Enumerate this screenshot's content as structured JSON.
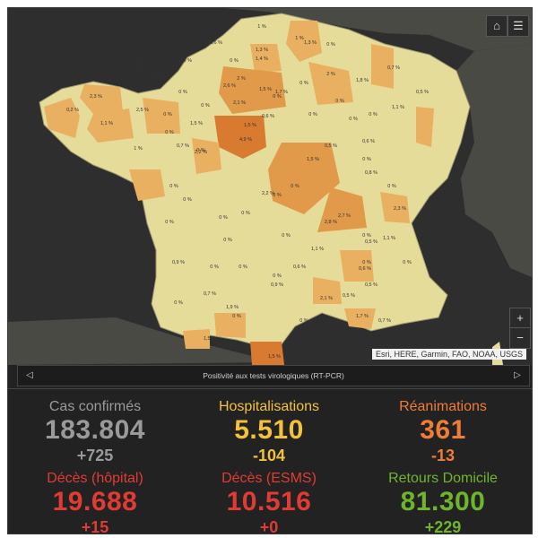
{
  "map": {
    "attribution": "Esri, HERE, Garmin, FAO, NOAA, USGS",
    "home_icon": "home-icon",
    "legend_icon": "legend-list-icon",
    "zoom_in": "+",
    "zoom_out": "−",
    "colors": {
      "ocean": "#2e2e2e",
      "land_base": "#e6dc9a",
      "neighbors": "#4a4a44",
      "orange_light": "#e8b060",
      "orange_mid": "#e09a4a",
      "orange_dark": "#d87a30",
      "dept_border": "#9a956e"
    },
    "department_labels": [
      "1 %",
      "1 %",
      "0,6 %",
      "1,3 %",
      "1,3 %",
      "0 %",
      "0,8 %",
      "0 %",
      "1,4 %",
      "0,7 %",
      "1,8 %",
      "0,8 %",
      "0 %",
      "2 %",
      "0,5 %",
      "1,1 %",
      "2,3 %",
      "2,5 %",
      "0 %",
      "2 %",
      "2,6 %",
      "2,1 %",
      "1,5 %",
      "1,7 %",
      "0 %",
      "0 %",
      "0 %",
      "1,1 %",
      "1,5 %",
      "0 %",
      "0 %",
      "0,6 %",
      "0 %",
      "0 %",
      "1,5 %",
      "4,9 %",
      "0,7 %",
      "1 %",
      "0,5 %",
      "0,2 %",
      "0 %",
      "2,2 %",
      "0 %",
      "0 %",
      "0,6 %",
      "0 %",
      "1,5 %",
      "0 %",
      "0,8 %",
      "0 %",
      "2,3 %",
      "0 %",
      "0 %",
      "0 %",
      "2,2 %",
      "0 %",
      "0 %",
      "0 %",
      "2,8 %",
      "2,7 %",
      "0 %",
      "1,1 %",
      "0 %",
      "0,5 %",
      "0 %",
      "0,9 %",
      "0 %",
      "0 %",
      "0 %",
      "0,6 %",
      "0 %",
      "0 %",
      "0,7 %",
      "0,9 %",
      "2,1 %",
      "0,5 %",
      "0,5 %",
      "0 %",
      "1,9 %",
      "0,7 %",
      "1,5 %",
      "0 %",
      "0 %",
      "1,7 %",
      "1,5 %",
      "1,1 %",
      "0,6 %"
    ]
  },
  "timeline": {
    "title": "Positivité aux tests virologiques (RT-PCR)",
    "prev_icon": "chevron-left-icon",
    "next_icon": "chevron-right-icon"
  },
  "stats": [
    {
      "key": "cas",
      "label": "Cas confirmés",
      "value": "183.804",
      "delta": "+725",
      "color": "#9a9a9a"
    },
    {
      "key": "hosp",
      "label": "Hospitalisations",
      "value": "5.510",
      "delta": "-104",
      "color": "#f3c13a"
    },
    {
      "key": "rea",
      "label": "Réanimations",
      "value": "361",
      "delta": "-13",
      "color": "#ee7d36"
    },
    {
      "key": "deces_hop",
      "label": "Décès (hôpital)",
      "value": "19.688",
      "delta": "+15",
      "color": "#e23b34"
    },
    {
      "key": "deces_esms",
      "label": "Décès (ESMS)",
      "value": "10.516",
      "delta": "+0",
      "color": "#e23b34"
    },
    {
      "key": "retours",
      "label": "Retours Domicile",
      "value": "81.300",
      "delta": "+229",
      "color": "#6fb52c"
    }
  ]
}
